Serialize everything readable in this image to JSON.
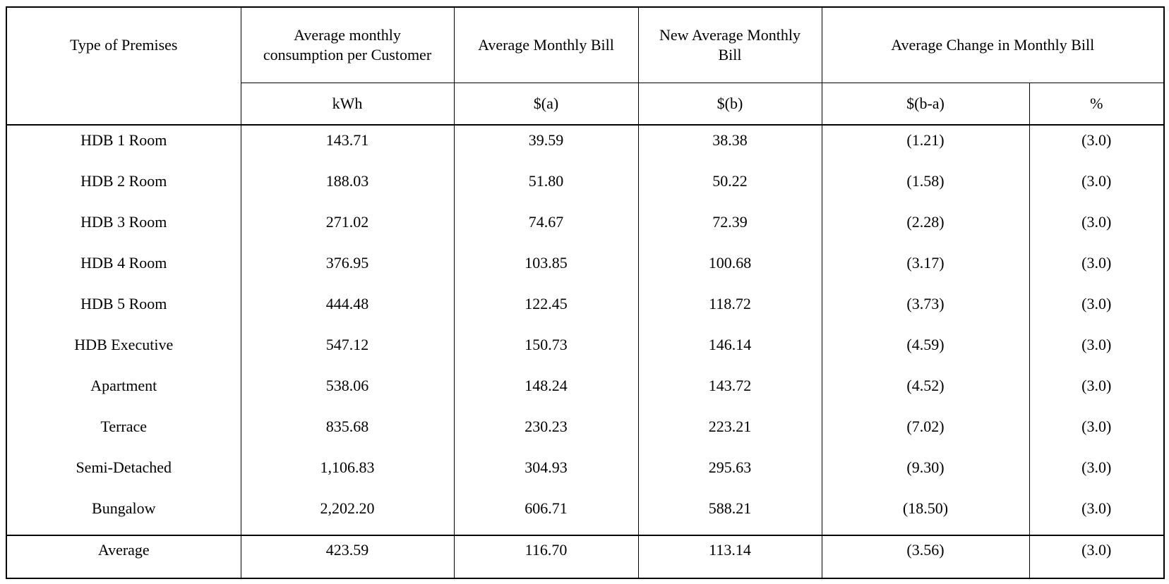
{
  "chart_data": {
    "type": "table",
    "header": {
      "premises": "Type of Premises",
      "consumption": "Average monthly consumption per Customer",
      "avg_bill": "Average Monthly Bill",
      "new_bill": "New Average Monthly Bill",
      "change": "Average Change in Monthly Bill"
    },
    "units": {
      "kwh": "kWh",
      "a": "$(a)",
      "b": "$(b)",
      "b_minus_a": "$(b-a)",
      "pct": "%"
    },
    "rows": [
      [
        "HDB 1 Room",
        "143.71",
        "39.59",
        "38.38",
        "(1.21)",
        "(3.0)"
      ],
      [
        "HDB 2 Room",
        "188.03",
        "51.80",
        "50.22",
        "(1.58)",
        "(3.0)"
      ],
      [
        "HDB 3 Room",
        "271.02",
        "74.67",
        "72.39",
        "(2.28)",
        "(3.0)"
      ],
      [
        "HDB 4 Room",
        "376.95",
        "103.85",
        "100.68",
        "(3.17)",
        "(3.0)"
      ],
      [
        "HDB 5 Room",
        "444.48",
        "122.45",
        "118.72",
        "(3.73)",
        "(3.0)"
      ],
      [
        "HDB Executive",
        "547.12",
        "150.73",
        "146.14",
        "(4.59)",
        "(3.0)"
      ],
      [
        "Apartment",
        "538.06",
        "148.24",
        "143.72",
        "(4.52)",
        "(3.0)"
      ],
      [
        "Terrace",
        "835.68",
        "230.23",
        "223.21",
        "(7.02)",
        "(3.0)"
      ],
      [
        "Semi-Detached",
        "1,106.83",
        "304.93",
        "295.63",
        "(9.30)",
        "(3.0)"
      ],
      [
        "Bungalow",
        "2,202.20",
        "606.71",
        "588.21",
        "(18.50)",
        "(3.0)"
      ]
    ],
    "average_row": [
      "Average",
      "423.59",
      "116.70",
      "113.14",
      "(3.56)",
      "(3.0)"
    ],
    "layout": {
      "grid": "vertical lines full height; horizontal lines only under headers, above average row and table edges",
      "legend": "none"
    }
  },
  "colors": {
    "background": "#ffffff",
    "border": "#000000",
    "text": "#000000"
  }
}
